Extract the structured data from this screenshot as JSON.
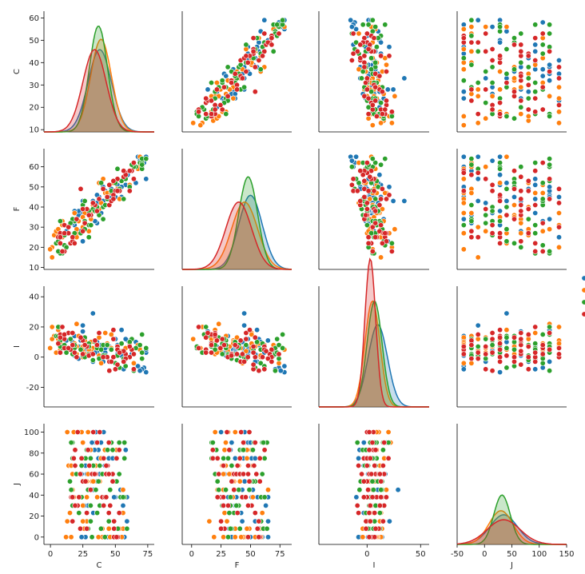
{
  "chart_data": {
    "type": "pairplot",
    "variables": [
      "C",
      "F",
      "I",
      "J"
    ],
    "diagonal": "kde",
    "offdiagonal": "scatter",
    "legend": {
      "position": "right-middle",
      "entries": [
        "",
        "",
        "",
        ""
      ]
    },
    "hue_colors": [
      "#1f77b4",
      "#ff7f0e",
      "#2ca02c",
      "#d62728"
    ],
    "axes": {
      "C": {
        "range": [
          9,
          63
        ],
        "ticks": [
          10,
          20,
          30,
          40,
          50,
          60
        ],
        "bottom_range": [
          -5,
          80
        ],
        "bottom_ticks": [
          0,
          25,
          50,
          75
        ]
      },
      "F": {
        "range": [
          9,
          69
        ],
        "ticks": [
          10,
          20,
          30,
          40,
          50,
          60
        ],
        "bottom_range": [
          -8,
          85
        ],
        "bottom_ticks": [
          0,
          25,
          50,
          75
        ]
      },
      "I": {
        "range": [
          -33,
          47
        ],
        "ticks": [
          -20,
          0,
          20,
          40
        ],
        "bottom_range": [
          -45,
          58
        ],
        "bottom_ticks": [
          0,
          50
        ]
      },
      "J": {
        "range": [
          -7,
          108
        ],
        "ticks": [
          0,
          20,
          40,
          60,
          80,
          100
        ],
        "bottom_range": [
          -50,
          150
        ],
        "bottom_ticks": [
          -50,
          0,
          50,
          100,
          150
        ]
      }
    },
    "points": {
      "count_per_series": 50,
      "C_ranges": [
        [
          20,
          60
        ],
        [
          12,
          58
        ],
        [
          15,
          60
        ],
        [
          15,
          55
        ]
      ],
      "J_values": [
        0,
        8,
        15,
        23,
        30,
        38,
        45,
        53,
        60,
        68,
        75,
        83,
        90,
        100
      ]
    },
    "kde_peaks": {
      "C": [
        {
          "mean": 38,
          "sd": 9
        },
        {
          "mean": 39,
          "sd": 8
        },
        {
          "mean": 37,
          "sd": 7
        },
        {
          "mean": 34,
          "sd": 9
        }
      ],
      "F": [
        {
          "mean": 50,
          "sd": 10
        },
        {
          "mean": 45,
          "sd": 11
        },
        {
          "mean": 48,
          "sd": 8
        },
        {
          "mean": 40,
          "sd": 11
        }
      ],
      "I": [
        {
          "mean": 10,
          "sd": 9
        },
        {
          "mean": 5,
          "sd": 7
        },
        {
          "mean": 7,
          "sd": 7
        },
        {
          "mean": 3,
          "sd": 5
        }
      ],
      "J": [
        {
          "mean": 35,
          "sd": 25
        },
        {
          "mean": 30,
          "sd": 22
        },
        {
          "mean": 32,
          "sd": 15
        },
        {
          "mean": 35,
          "sd": 30
        }
      ]
    }
  }
}
